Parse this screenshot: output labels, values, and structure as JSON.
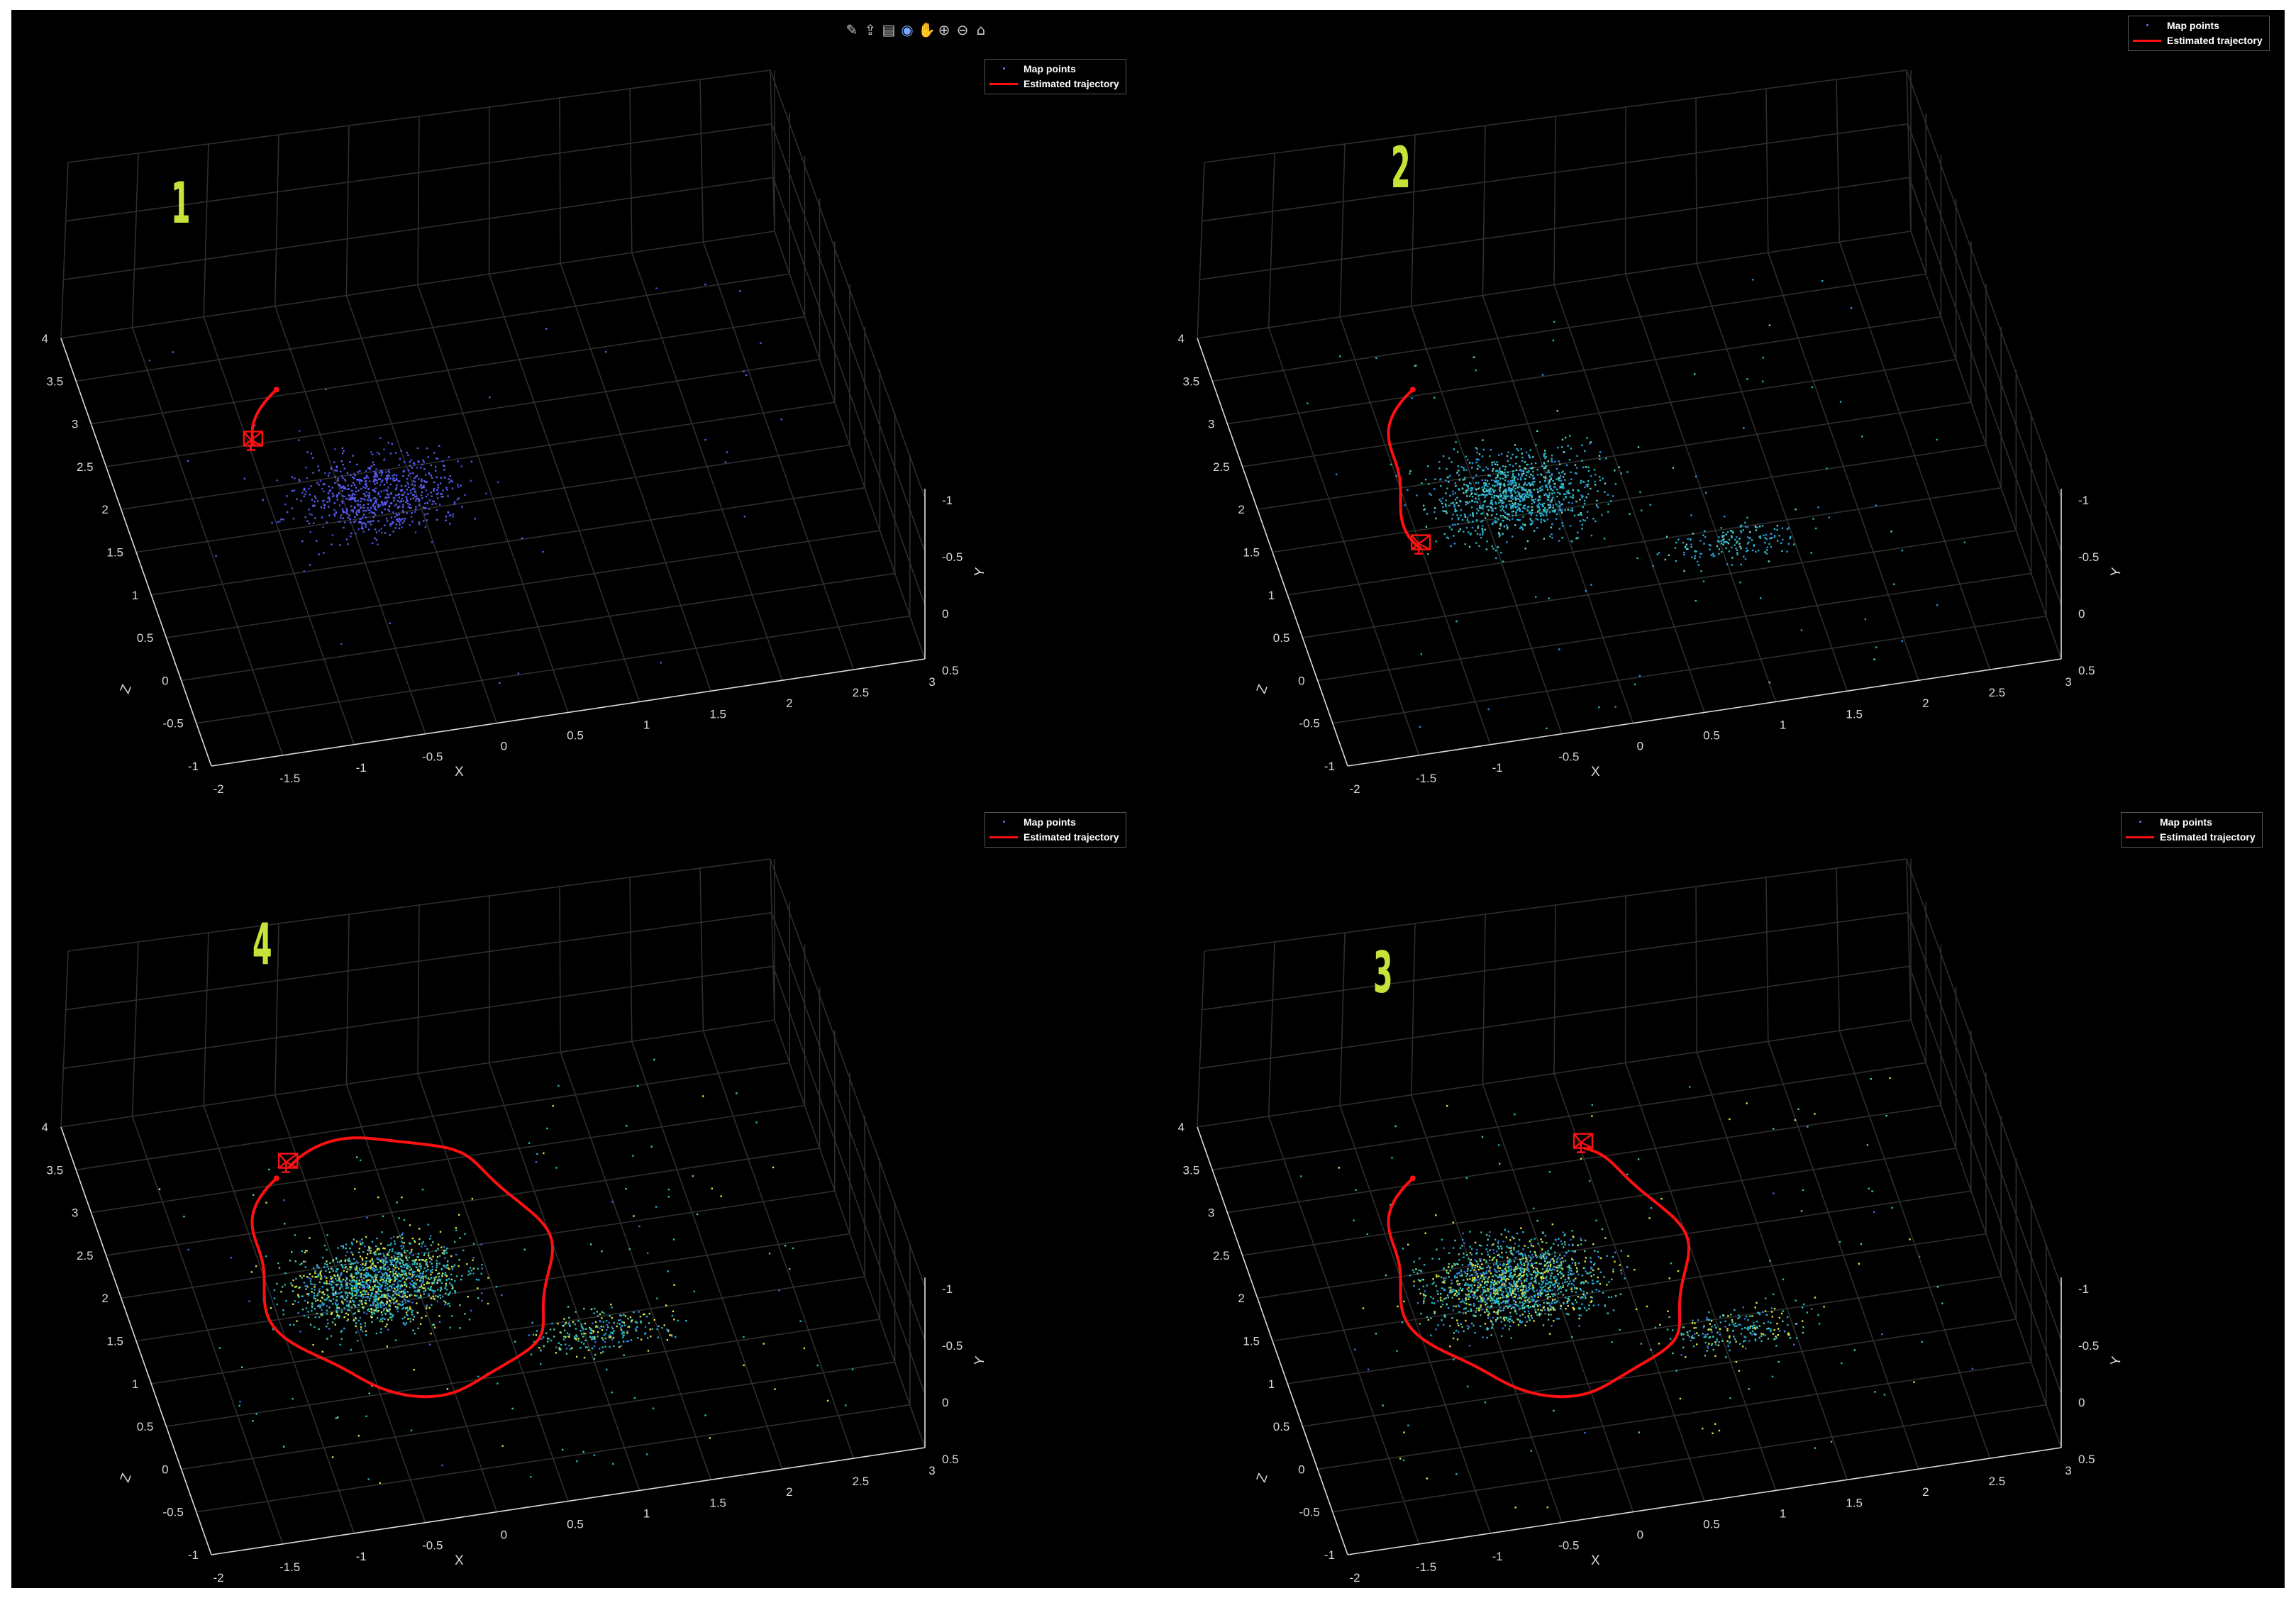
{
  "toolbar": {
    "icons": [
      "brush-icon",
      "export-icon",
      "data-tips-icon",
      "rotate-3d-icon",
      "pan-icon",
      "zoom-in-icon",
      "zoom-out-icon",
      "home-icon"
    ],
    "glyphs": [
      "✎",
      "⇪",
      "▤",
      "◉",
      "✋",
      "⊕",
      "⊖",
      "⌂"
    ],
    "active": "rotate-3d-icon"
  },
  "legend": {
    "map_points": "Map points",
    "trajectory": "Estimated trajectory"
  },
  "colors": {
    "background": "#000000",
    "grid": "#2e2e2e",
    "axis_text": "#d8d8d8",
    "trajectory": "#ff1010",
    "panel_label": "#c6e33a",
    "points_early": "#5a5cf0",
    "points_mid": "#20b8c8",
    "points_late": "#d6e840"
  },
  "axes": {
    "x_label": "X",
    "y_label": "Y",
    "z_label": "Z",
    "x_ticks": [
      "-2",
      "-1.5",
      "-1",
      "-0.5",
      "0",
      "0.5",
      "1",
      "1.5",
      "2",
      "2.5",
      "3"
    ],
    "z_ticks": [
      "-1",
      "-0.5",
      "0",
      "0.5",
      "1",
      "1.5",
      "2",
      "2.5",
      "3",
      "3.5",
      "4"
    ],
    "y_ticks": [
      "-1",
      "-0.5",
      "0",
      "0.5"
    ]
  },
  "panels": [
    {
      "id": "p1",
      "label": "1",
      "legend_pos": "top-right",
      "progress": 0.08,
      "point_tint": "early"
    },
    {
      "id": "p2",
      "label": "2",
      "legend_pos": "top-right",
      "progress": 0.22,
      "point_tint": "mid"
    },
    {
      "id": "p4",
      "label": "4",
      "legend_pos": "top-right",
      "progress": 1.0,
      "point_tint": "late"
    },
    {
      "id": "p3",
      "label": "3",
      "legend_pos": "top-right",
      "progress": 0.82,
      "point_tint": "late"
    }
  ]
}
